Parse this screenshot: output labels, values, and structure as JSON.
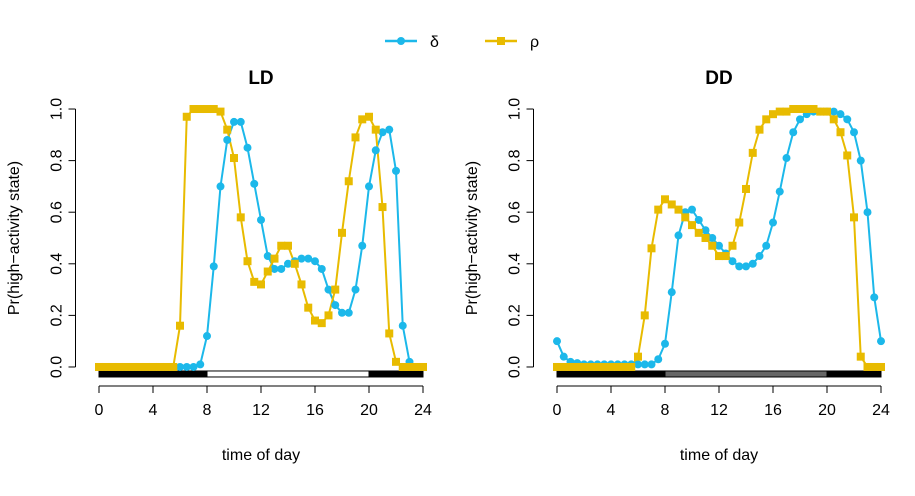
{
  "legend_names": [
    "δ",
    "ρ"
  ],
  "chart_data": [
    {
      "type": "line",
      "title": "LD",
      "xlabel": "time of day",
      "ylabel": "Pr(high−activity state)",
      "x": [
        0,
        0.5,
        1,
        1.5,
        2,
        2.5,
        3,
        3.5,
        4,
        4.5,
        5,
        5.5,
        6,
        6.5,
        7,
        7.5,
        8,
        8.5,
        9,
        9.5,
        10,
        10.5,
        11,
        11.5,
        12,
        12.5,
        13,
        13.5,
        14,
        14.5,
        15,
        15.5,
        16,
        16.5,
        17,
        17.5,
        18,
        18.5,
        19,
        19.5,
        20,
        20.5,
        21,
        21.5,
        22,
        22.5,
        23,
        23.5,
        24
      ],
      "series": [
        {
          "color": "#1cb8ea",
          "marker": "circle",
          "values": [
            0,
            0,
            0,
            0,
            0,
            0,
            0,
            0,
            0,
            0,
            0,
            0,
            0,
            0,
            0,
            0.01,
            0.12,
            0.39,
            0.7,
            0.88,
            0.95,
            0.95,
            0.85,
            0.71,
            0.57,
            0.43,
            0.38,
            0.38,
            0.4,
            0.41,
            0.42,
            0.42,
            0.41,
            0.38,
            0.3,
            0.24,
            0.21,
            0.21,
            0.3,
            0.47,
            0.7,
            0.84,
            0.91,
            0.92,
            0.76,
            0.16,
            0.02,
            0,
            0
          ]
        },
        {
          "color": "#e8bb00",
          "marker": "square",
          "values": [
            0,
            0,
            0,
            0,
            0,
            0,
            0,
            0,
            0,
            0,
            0,
            0,
            0.16,
            0.97,
            1.0,
            1.0,
            1.0,
            1.0,
            0.99,
            0.92,
            0.81,
            0.58,
            0.41,
            0.33,
            0.32,
            0.37,
            0.42,
            0.47,
            0.47,
            0.4,
            0.32,
            0.23,
            0.18,
            0.17,
            0.2,
            0.3,
            0.52,
            0.72,
            0.89,
            0.96,
            0.97,
            0.92,
            0.62,
            0.13,
            0.02,
            0,
            0,
            0,
            0
          ]
        }
      ],
      "light_bar": [
        {
          "start": 0,
          "end": 8,
          "color": "#000000"
        },
        {
          "start": 8,
          "end": 20,
          "color": "#ffffff"
        },
        {
          "start": 20,
          "end": 24,
          "color": "#000000"
        }
      ],
      "xlim": [
        -1,
        25
      ],
      "ylim": [
        -0.04,
        1.04
      ],
      "xticks": [
        0,
        4,
        8,
        12,
        16,
        20,
        24
      ],
      "yticks": [
        {
          "value": 0,
          "label": "0.0"
        },
        0.2,
        0.4,
        0.6,
        0.8,
        {
          "value": 1,
          "label": "1.0"
        }
      ]
    },
    {
      "type": "line",
      "title": "DD",
      "xlabel": "time of day",
      "ylabel": "Pr(high−activity state)",
      "x": [
        0,
        0.5,
        1,
        1.5,
        2,
        2.5,
        3,
        3.5,
        4,
        4.5,
        5,
        5.5,
        6,
        6.5,
        7,
        7.5,
        8,
        8.5,
        9,
        9.5,
        10,
        10.5,
        11,
        11.5,
        12,
        12.5,
        13,
        13.5,
        14,
        14.5,
        15,
        15.5,
        16,
        16.5,
        17,
        17.5,
        18,
        18.5,
        19,
        19.5,
        20,
        20.5,
        21,
        21.5,
        22,
        22.5,
        23,
        23.5,
        24
      ],
      "series": [
        {
          "color": "#1cb8ea",
          "marker": "circle",
          "values": [
            0.1,
            0.04,
            0.02,
            0.015,
            0.01,
            0.01,
            0.01,
            0.01,
            0.01,
            0.01,
            0.01,
            0.01,
            0.01,
            0.01,
            0.01,
            0.03,
            0.09,
            0.29,
            0.51,
            0.6,
            0.61,
            0.57,
            0.53,
            0.5,
            0.47,
            0.44,
            0.41,
            0.39,
            0.39,
            0.4,
            0.43,
            0.47,
            0.56,
            0.68,
            0.81,
            0.91,
            0.96,
            0.98,
            0.99,
            0.99,
            0.99,
            0.99,
            0.98,
            0.96,
            0.91,
            0.8,
            0.6,
            0.27,
            0.1
          ]
        },
        {
          "color": "#e8bb00",
          "marker": "square",
          "values": [
            0,
            0,
            0,
            0,
            0,
            0,
            0,
            0,
            0,
            0,
            0,
            0,
            0.04,
            0.2,
            0.46,
            0.61,
            0.65,
            0.63,
            0.61,
            0.58,
            0.55,
            0.52,
            0.5,
            0.47,
            0.43,
            0.43,
            0.47,
            0.56,
            0.69,
            0.83,
            0.92,
            0.96,
            0.98,
            0.99,
            0.99,
            1.0,
            1.0,
            1.0,
            1.0,
            0.99,
            0.99,
            0.96,
            0.91,
            0.82,
            0.58,
            0.04,
            0,
            0,
            0
          ]
        }
      ],
      "light_bar": [
        {
          "start": 0,
          "end": 8,
          "color": "#000000"
        },
        {
          "start": 8,
          "end": 20,
          "color": "#666666"
        },
        {
          "start": 20,
          "end": 24,
          "color": "#000000"
        }
      ],
      "xlim": [
        -1,
        25
      ],
      "ylim": [
        -0.04,
        1.04
      ],
      "xticks": [
        0,
        4,
        8,
        12,
        16,
        20,
        24
      ],
      "yticks": [
        {
          "value": 0,
          "label": "0.0"
        },
        0.2,
        0.4,
        0.6,
        0.8,
        {
          "value": 1,
          "label": "1.0"
        }
      ]
    }
  ]
}
